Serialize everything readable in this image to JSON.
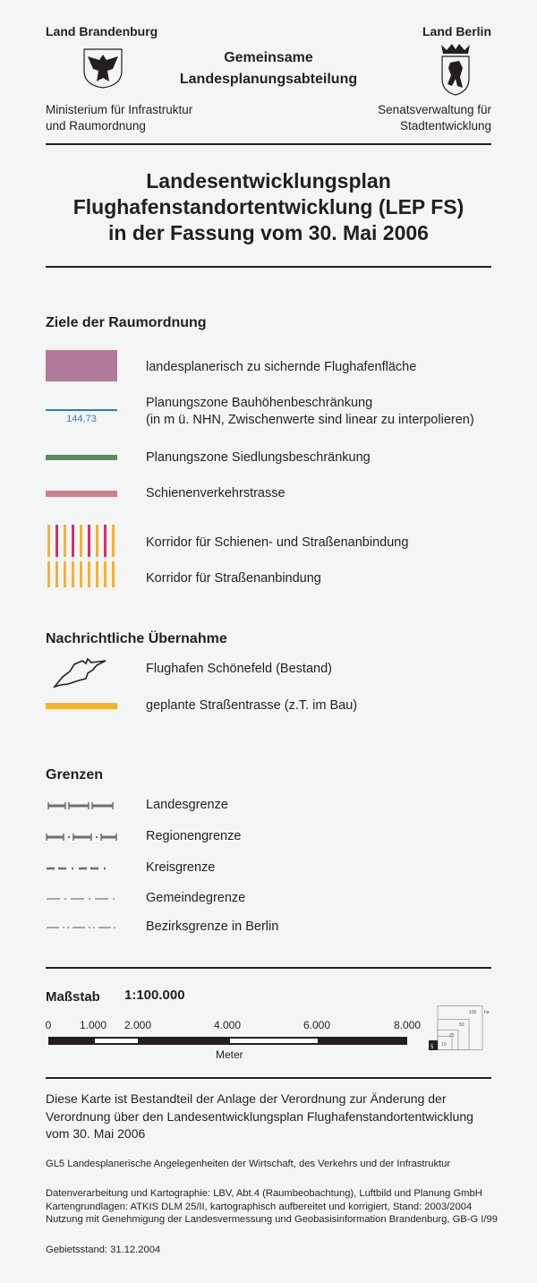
{
  "header": {
    "left_title": "Land Brandenburg",
    "left_subtitle_1": "Ministerium für Infrastruktur",
    "left_subtitle_2": "und Raumordnung",
    "center_title_1": "Gemeinsame",
    "center_title_2": "Landesplanungsabteilung",
    "right_title": "Land Berlin",
    "right_subtitle_1": "Senatsverwaltung für",
    "right_subtitle_2": "Stadtentwicklung"
  },
  "title": {
    "line1": "Landesentwicklungsplan",
    "line2": "Flughafenstandortentwicklung (LEP FS)",
    "line3": "in der Fassung vom 30. Mai 2006"
  },
  "ziele": {
    "heading": "Ziele der Raumordnung",
    "items": [
      {
        "label": "landesplanerisch zu sichernde Flughafenfläche",
        "color": "#b07a98"
      },
      {
        "label": "Planungszone Bauhöhenbeschränkung",
        "label2": "(in m ü. NHN, Zwischenwerte sind linear zu interpolieren)",
        "value": "144,73",
        "color": "#2a7fc0"
      },
      {
        "label": "Planungszone Siedlungsbeschränkung",
        "color": "#5a8c58"
      },
      {
        "label": "Schienenverkehrstrasse",
        "color": "#d08088"
      },
      {
        "label": "Korridor für Schienen- und Straßenanbindung",
        "colors": [
          "#fbb02d",
          "#de2a6c"
        ]
      },
      {
        "label": "Korridor für Straßenanbindung",
        "color": "#fbb02d"
      }
    ]
  },
  "nachrichtlich": {
    "heading": "Nachrichtliche Übernahme",
    "items": [
      {
        "label": "Flughafen Schönefeld (Bestand)",
        "icon": "airport-outline-icon"
      },
      {
        "label": "geplante Straßentrasse (z.T. im Bau)",
        "color": "#fbb02d"
      }
    ]
  },
  "grenzen": {
    "heading": "Grenzen",
    "items": [
      {
        "label": "Landesgrenze"
      },
      {
        "label": "Regionengrenze"
      },
      {
        "label": "Kreisgrenze"
      },
      {
        "label": "Gemeindegrenze"
      },
      {
        "label": "Bezirksgrenze in Berlin"
      }
    ]
  },
  "scale": {
    "label": "Maßstab",
    "ratio": "1:100.000",
    "ticks": [
      "0",
      "1.000",
      "2.000",
      "4.000",
      "6.000",
      "8.000"
    ],
    "unit": "Meter",
    "area_labels": [
      "5",
      "10",
      "25",
      "50",
      "100"
    ],
    "area_unit": "ha"
  },
  "footer": {
    "note_1": "Diese Karte ist Bestandteil der Anlage der Verordnung zur Änderung der",
    "note_2": "Verordnung über den Landesentwicklungsplan Flughafenstandortentwicklung",
    "note_3": "vom 30. Mai 2006",
    "gl5": "GL5 Landesplanerische Angelegenheiten der Wirtschaft, des Verkehrs und der Infrastruktur",
    "credits_1": "Datenverarbeitung und Kartographie: LBV, Abt.4 (Raumbeobachtung), Luftbild und Planung GmbH",
    "credits_2": "Kartengrundlagen: ATKIS DLM 25/II, kartographisch aufbereitet und korrigiert, Stand: 2003/2004",
    "credits_3": "Nutzung mit Genehmigung der Landesvermessung und Geobasisinformation Brandenburg, GB-G I/99",
    "gebietsstand": "Gebietsstand: 31.12.2004"
  }
}
